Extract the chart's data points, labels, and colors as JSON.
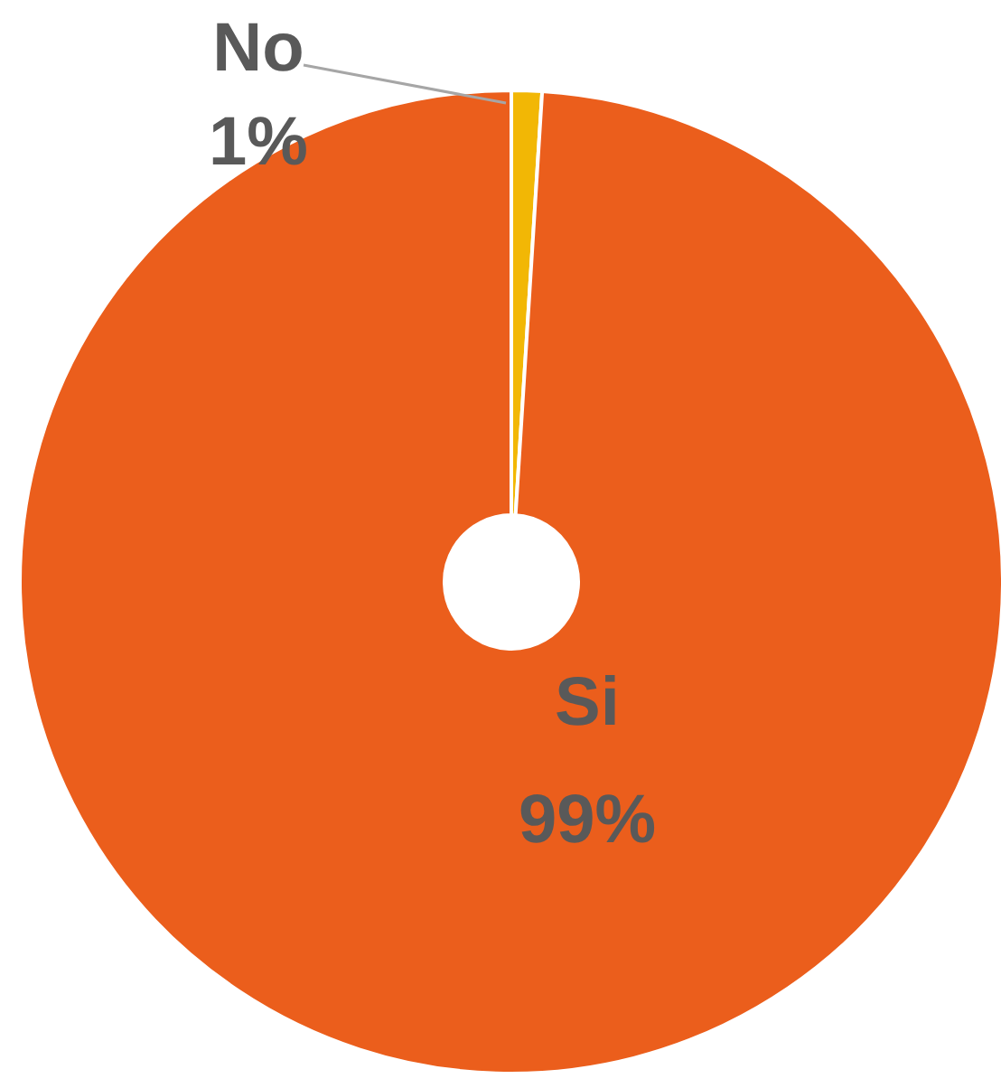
{
  "chart_data": {
    "type": "donut",
    "categories": [
      "No",
      "Si"
    ],
    "values": [
      1,
      99
    ],
    "colors": [
      "#f2b705",
      "#eb5e1c"
    ],
    "value_labels": [
      "1%",
      "99%"
    ]
  }
}
